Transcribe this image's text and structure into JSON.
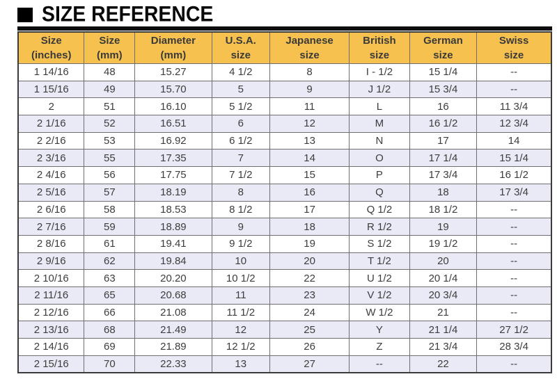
{
  "title": "SIZE REFERENCE",
  "colors": {
    "header_bg": "#F6C14F",
    "row_alt_bg": "#EAEAF6",
    "border_outer": "#3b3b3b",
    "border_inner": "#6e6e6e",
    "cell_text": "#3d3d3d"
  },
  "chart_data": {
    "type": "table",
    "title": "SIZE REFERENCE",
    "columns": [
      "Size (inches)",
      "Size (mm)",
      "Diameter (mm)",
      "U.S.A. size",
      "Japanese size",
      "British size",
      "German size",
      "Swiss size"
    ],
    "header_lines": [
      {
        "line1": "Size",
        "line2": "(inches)"
      },
      {
        "line1": "Size",
        "line2": "(mm)"
      },
      {
        "line1": "Diameter",
        "line2": "(mm)"
      },
      {
        "line1": "U.S.A.",
        "line2": "size"
      },
      {
        "line1": "Japanese",
        "line2": "size"
      },
      {
        "line1": "British",
        "line2": "size"
      },
      {
        "line1": "German",
        "line2": "size"
      },
      {
        "line1": "Swiss",
        "line2": "size"
      }
    ],
    "rows": [
      [
        "1 14/16",
        "48",
        "15.27",
        "4 1/2",
        "8",
        "I - 1/2",
        "15 1/4",
        "--"
      ],
      [
        "1 15/16",
        "49",
        "15.70",
        "5",
        "9",
        "J 1/2",
        "15 3/4",
        "--"
      ],
      [
        "2",
        "51",
        "16.10",
        "5 1/2",
        "11",
        "L",
        "16",
        "11 3/4"
      ],
      [
        "2 1/16",
        "52",
        "16.51",
        "6",
        "12",
        "M",
        "16 1/2",
        "12 3/4"
      ],
      [
        "2 2/16",
        "53",
        "16.92",
        "6 1/2",
        "13",
        "N",
        "17",
        "14"
      ],
      [
        "2 3/16",
        "55",
        "17.35",
        "7",
        "14",
        "O",
        "17 1/4",
        "15 1/4"
      ],
      [
        "2 4/16",
        "56",
        "17.75",
        "7 1/2",
        "15",
        "P",
        "17 3/4",
        "16 1/2"
      ],
      [
        "2 5/16",
        "57",
        "18.19",
        "8",
        "16",
        "Q",
        "18",
        "17 3/4"
      ],
      [
        "2 6/16",
        "58",
        "18.53",
        "8 1/2",
        "17",
        "Q 1/2",
        "18 1/2",
        "--"
      ],
      [
        "2 7/16",
        "59",
        "18.89",
        "9",
        "18",
        "R 1/2",
        "19",
        "--"
      ],
      [
        "2 8/16",
        "61",
        "19.41",
        "9 1/2",
        "19",
        "S 1/2",
        "19 1/2",
        "--"
      ],
      [
        "2 9/16",
        "62",
        "19.84",
        "10",
        "20",
        "T 1/2",
        "20",
        "--"
      ],
      [
        "2 10/16",
        "63",
        "20.20",
        "10 1/2",
        "22",
        "U 1/2",
        "20 1/4",
        "--"
      ],
      [
        "2 11/16",
        "65",
        "20.68",
        "11",
        "23",
        "V 1/2",
        "20 3/4",
        "--"
      ],
      [
        "2 12/16",
        "66",
        "21.08",
        "11 1/2",
        "24",
        "W 1/2",
        "21",
        "--"
      ],
      [
        "2 13/16",
        "68",
        "21.49",
        "12",
        "25",
        "Y",
        "21 1/4",
        "27 1/2"
      ],
      [
        "2 14/16",
        "69",
        "21.89",
        "12 1/2",
        "26",
        "Z",
        "21 3/4",
        "28 3/4"
      ],
      [
        "2 15/16",
        "70",
        "22.33",
        "13",
        "27",
        "--",
        "22",
        "--"
      ]
    ],
    "layout": {
      "column_width_percent": [
        12.4,
        9.5,
        14.4,
        10.9,
        14.9,
        11.3,
        12.6,
        14.0
      ],
      "header_background": "#F6C14F",
      "alternating_row_background": "#EAEAF6"
    }
  }
}
